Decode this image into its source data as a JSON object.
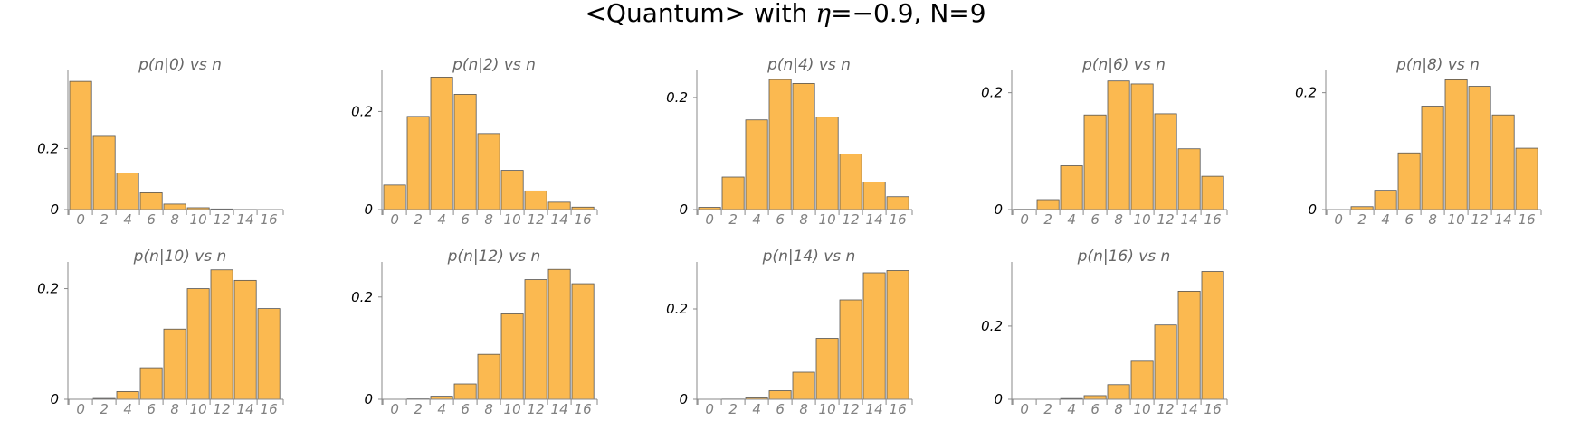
{
  "title": {
    "prefix": "<Quantum> with ",
    "eta_symbol": "η",
    "suffix": "=−0.9, N=9"
  },
  "chart_data": [
    {
      "type": "bar",
      "title": "p(n|0) vs n",
      "categories": [
        "0",
        "2",
        "4",
        "6",
        "8",
        "10",
        "12",
        "14",
        "16"
      ],
      "values": [
        0.42,
        0.24,
        0.12,
        0.055,
        0.018,
        0.006,
        0.002,
        0.0005,
        0.0001
      ],
      "ylim": [
        0,
        0.45
      ],
      "yticks": [
        0,
        0.2
      ],
      "ytick_labels": [
        "0",
        "0.2"
      ]
    },
    {
      "type": "bar",
      "title": "p(n|2) vs n",
      "categories": [
        "0",
        "2",
        "4",
        "6",
        "8",
        "10",
        "12",
        "14",
        "16"
      ],
      "values": [
        0.05,
        0.19,
        0.27,
        0.235,
        0.155,
        0.08,
        0.038,
        0.015,
        0.005
      ],
      "ylim": [
        0,
        0.28
      ],
      "yticks": [
        0,
        0.2
      ],
      "ytick_labels": [
        "0",
        "0.2"
      ]
    },
    {
      "type": "bar",
      "title": "p(n|4) vs n",
      "categories": [
        "0",
        "2",
        "4",
        "6",
        "8",
        "10",
        "12",
        "14",
        "16"
      ],
      "values": [
        0.004,
        0.058,
        0.16,
        0.232,
        0.225,
        0.165,
        0.099,
        0.049,
        0.023
      ],
      "ylim": [
        0,
        0.245
      ],
      "yticks": [
        0,
        0.2
      ],
      "ytick_labels": [
        "0",
        "0.2"
      ]
    },
    {
      "type": "bar",
      "title": "p(n|6) vs n",
      "categories": [
        "0",
        "2",
        "4",
        "6",
        "8",
        "10",
        "12",
        "14",
        "16"
      ],
      "values": [
        0.0005,
        0.017,
        0.075,
        0.162,
        0.22,
        0.215,
        0.164,
        0.104,
        0.057
      ],
      "ylim": [
        0,
        0.235
      ],
      "yticks": [
        0,
        0.2
      ],
      "ytick_labels": [
        "0",
        "0.2"
      ]
    },
    {
      "type": "bar",
      "title": "p(n|8) vs n",
      "categories": [
        "0",
        "2",
        "4",
        "6",
        "8",
        "10",
        "12",
        "14",
        "16"
      ],
      "values": [
        5e-05,
        0.005,
        0.033,
        0.097,
        0.177,
        0.222,
        0.211,
        0.162,
        0.105
      ],
      "ylim": [
        0,
        0.235
      ],
      "yticks": [
        0,
        0.2
      ],
      "ytick_labels": [
        "0",
        "0.2"
      ]
    },
    {
      "type": "bar",
      "title": "p(n|10) vs n",
      "categories": [
        "0",
        "2",
        "4",
        "6",
        "8",
        "10",
        "12",
        "14",
        "16"
      ],
      "values": [
        0.0001,
        0.0015,
        0.014,
        0.057,
        0.127,
        0.2,
        0.234,
        0.215,
        0.164
      ],
      "ylim": [
        0,
        0.245
      ],
      "yticks": [
        0,
        0.2
      ],
      "ytick_labels": [
        "0",
        "0.2"
      ]
    },
    {
      "type": "bar",
      "title": "p(n|12) vs n",
      "categories": [
        "0",
        "2",
        "4",
        "6",
        "8",
        "10",
        "12",
        "14",
        "16"
      ],
      "values": [
        0.0001,
        0.0008,
        0.006,
        0.03,
        0.088,
        0.167,
        0.234,
        0.254,
        0.226
      ],
      "ylim": [
        0,
        0.265
      ],
      "yticks": [
        0,
        0.2
      ],
      "ytick_labels": [
        "0",
        "0.2"
      ]
    },
    {
      "type": "bar",
      "title": "p(n|14) vs n",
      "categories": [
        "0",
        "2",
        "4",
        "6",
        "8",
        "10",
        "12",
        "14",
        "16"
      ],
      "values": [
        0.0001,
        0.0005,
        0.003,
        0.019,
        0.06,
        0.135,
        0.22,
        0.28,
        0.285
      ],
      "ylim": [
        0,
        0.3
      ],
      "yticks": [
        0,
        0.2
      ],
      "ytick_labels": [
        "0",
        "0.2"
      ]
    },
    {
      "type": "bar",
      "title": "p(n|16) vs n",
      "categories": [
        "0",
        "2",
        "4",
        "6",
        "8",
        "10",
        "12",
        "14",
        "16"
      ],
      "values": [
        0.0001,
        0.0003,
        0.002,
        0.01,
        0.04,
        0.104,
        0.203,
        0.295,
        0.349
      ],
      "ylim": [
        0,
        0.37
      ],
      "yticks": [
        0,
        0.2
      ],
      "ytick_labels": [
        "0",
        "0.2"
      ]
    }
  ]
}
